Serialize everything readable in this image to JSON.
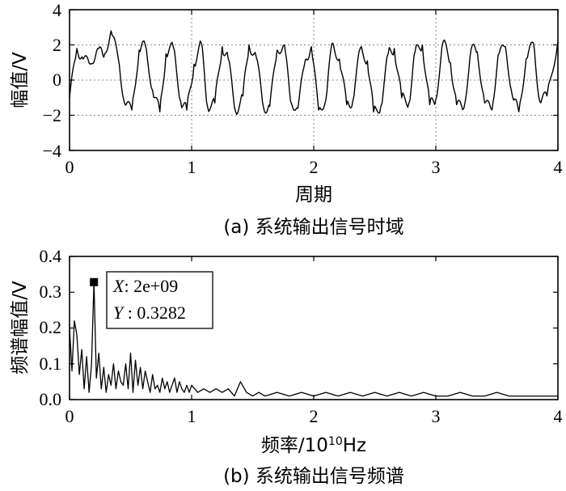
{
  "chart_data": [
    {
      "id": "time",
      "type": "line",
      "caption": "(a) 系统输出信号时域",
      "xlabel": "周期",
      "ylabel": "幅值/V",
      "xlim": [
        0,
        4
      ],
      "ylim": [
        -4,
        4
      ],
      "xticks": [
        "0",
        "1",
        "2",
        "3",
        "4"
      ],
      "yticks": [
        "4",
        "2",
        "0",
        "−2",
        "−4"
      ],
      "grid": true,
      "series": [
        {
          "x": [
            0.0,
            0.06,
            0.11,
            0.17,
            0.23,
            0.28,
            0.34,
            0.4,
            0.45,
            0.51,
            0.57,
            0.62,
            0.68,
            0.74,
            0.79,
            0.85,
            0.91,
            0.96,
            1.02,
            1.08,
            1.13,
            1.19,
            1.25,
            1.3,
            1.36,
            1.42,
            1.47,
            1.53,
            1.59,
            1.64,
            1.7,
            1.76,
            1.81,
            1.87,
            1.93,
            1.98,
            2.04,
            2.1,
            2.15,
            2.21,
            2.27,
            2.32,
            2.38,
            2.44,
            2.49,
            2.55,
            2.61,
            2.66,
            2.72,
            2.78,
            2.83,
            2.89,
            2.95,
            3.0,
            3.06,
            3.12,
            3.17,
            3.23,
            3.29,
            3.34,
            3.4,
            3.46,
            3.51,
            3.57,
            3.63,
            3.68,
            3.74,
            3.8,
            3.85,
            3.91,
            4.0
          ],
          "y": [
            -1.0,
            1.8,
            1.2,
            0.9,
            1.8,
            1.3,
            2.8,
            1.2,
            -1.3,
            -1.7,
            1.7,
            2.0,
            -0.6,
            -1.8,
            1.5,
            1.9,
            -1.2,
            -1.7,
            0.9,
            2.1,
            -1.5,
            -1.3,
            1.9,
            1.2,
            -1.8,
            -0.9,
            2.0,
            1.3,
            -1.6,
            -1.5,
            1.7,
            2.0,
            -1.2,
            -1.6,
            1.1,
            1.9,
            -1.7,
            -1.1,
            2.1,
            1.2,
            -1.4,
            -1.2,
            1.8,
            1.1,
            -1.8,
            -1.5,
            1.5,
            1.8,
            -1.0,
            -1.3,
            1.6,
            2.0,
            -1.4,
            -1.1,
            2.2,
            1.0,
            -1.4,
            -1.6,
            1.8,
            1.6,
            -1.3,
            -1.7,
            1.4,
            1.9,
            -1.0,
            -1.8,
            1.2,
            2.1,
            -1.2,
            -0.9,
            2.2
          ]
        }
      ]
    },
    {
      "id": "spectrum",
      "type": "line",
      "caption": "(b) 系统输出信号频谱",
      "xlabel": "频率/10¹⁰Hz",
      "xlabel_base": "频率/10",
      "xlabel_sup": "10",
      "xlabel_unit": "Hz",
      "ylabel": "频谱幅值/V",
      "xlim": [
        0,
        4
      ],
      "ylim": [
        0,
        0.4
      ],
      "xticks": [
        "0",
        "1",
        "2",
        "3",
        "4"
      ],
      "yticks": [
        "0.4",
        "0.3",
        "0.2",
        "0.1",
        "0.0"
      ],
      "grid": false,
      "datatip": {
        "x": 0.2,
        "y": 0.3282,
        "x_line": "X: 2e+09",
        "y_line": "Y : 0.3282",
        "x_key": "X",
        "x_val": ": 2e+09",
        "y_key": "Y",
        "y_val": " : 0.3282"
      },
      "series": [
        {
          "x": [
            0.0,
            0.02,
            0.04,
            0.06,
            0.08,
            0.1,
            0.12,
            0.14,
            0.16,
            0.18,
            0.2,
            0.22,
            0.24,
            0.26,
            0.28,
            0.3,
            0.32,
            0.34,
            0.36,
            0.38,
            0.4,
            0.42,
            0.44,
            0.46,
            0.48,
            0.5,
            0.52,
            0.54,
            0.56,
            0.58,
            0.6,
            0.62,
            0.64,
            0.66,
            0.68,
            0.7,
            0.72,
            0.74,
            0.76,
            0.78,
            0.8,
            0.82,
            0.84,
            0.86,
            0.88,
            0.9,
            0.92,
            0.94,
            0.96,
            0.98,
            1.0,
            1.05,
            1.1,
            1.15,
            1.2,
            1.25,
            1.3,
            1.35,
            1.4,
            1.45,
            1.5,
            1.55,
            1.6,
            1.7,
            1.8,
            1.9,
            2.0,
            2.1,
            2.2,
            2.3,
            2.4,
            2.5,
            2.6,
            2.7,
            2.8,
            2.9,
            3.0,
            3.1,
            3.2,
            3.3,
            3.4,
            3.5,
            3.6,
            3.7,
            3.8,
            3.9,
            4.0
          ],
          "y": [
            0.2,
            0.08,
            0.22,
            0.18,
            0.07,
            0.14,
            0.03,
            0.12,
            0.02,
            0.1,
            0.3282,
            0.06,
            0.13,
            0.03,
            0.09,
            0.02,
            0.07,
            0.04,
            0.1,
            0.03,
            0.08,
            0.05,
            0.04,
            0.1,
            0.03,
            0.13,
            0.02,
            0.11,
            0.04,
            0.09,
            0.03,
            0.08,
            0.05,
            0.02,
            0.07,
            0.03,
            0.04,
            0.02,
            0.06,
            0.03,
            0.05,
            0.02,
            0.04,
            0.06,
            0.02,
            0.05,
            0.03,
            0.02,
            0.04,
            0.02,
            0.04,
            0.02,
            0.03,
            0.02,
            0.03,
            0.02,
            0.03,
            0.01,
            0.05,
            0.02,
            0.01,
            0.02,
            0.01,
            0.02,
            0.01,
            0.02,
            0.01,
            0.02,
            0.01,
            0.02,
            0.01,
            0.02,
            0.01,
            0.02,
            0.01,
            0.02,
            0.01,
            0.01,
            0.02,
            0.01,
            0.01,
            0.02,
            0.01,
            0.01,
            0.01,
            0.01,
            0.01
          ]
        }
      ]
    }
  ]
}
